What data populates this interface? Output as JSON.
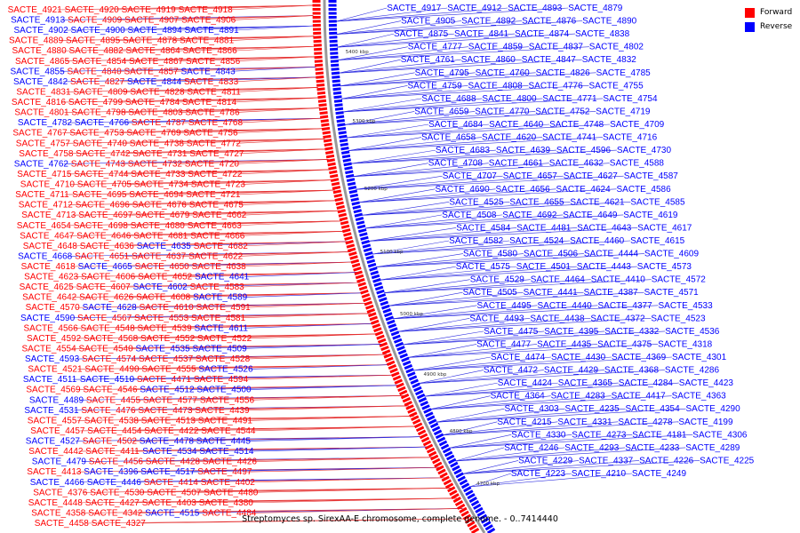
{
  "caption": "Streptomyces sp. SirexAA-E chromosome, complete genome. - 0..7414440",
  "legend": [
    {
      "label": "Forward",
      "color": "#ff0000"
    },
    {
      "label": "Reverse",
      "color": "#0000ff"
    }
  ],
  "colors": {
    "forward": "#ff0000",
    "reverse": "#0000ff",
    "forward_line": "#e53030",
    "reverse_line": "#2a2ae0"
  },
  "ticks": [
    "5400 kbp",
    "5300 kbp",
    "5200 kbp",
    "5100 kbp",
    "5000 kbp",
    "4900 kbp",
    "4800 kbp",
    "4700 kbp"
  ],
  "left_labels": [
    [
      "SACTE_4921",
      "f"
    ],
    [
      "SACTE_4920",
      "f"
    ],
    [
      "SACTE_4919",
      "f"
    ],
    [
      "SACTE_4918",
      "f"
    ],
    [
      "SACTE_4913",
      "r"
    ],
    [
      "SACTE_4909",
      "f"
    ],
    [
      "SACTE_4907",
      "f"
    ],
    [
      "SACTE_4906",
      "f"
    ],
    [
      "SACTE_4902",
      "r"
    ],
    [
      "SACTE_4900",
      "r"
    ],
    [
      "SACTE_4894",
      "r"
    ],
    [
      "SACTE_4891",
      "r"
    ],
    [
      "SACTE_4889",
      "f"
    ],
    [
      "SACTE_4895",
      "f"
    ],
    [
      "SACTE_4878",
      "f"
    ],
    [
      "SACTE_4881",
      "f"
    ],
    [
      "SACTE_4880",
      "f"
    ],
    [
      "SACTE_4882",
      "f"
    ],
    [
      "SACTE_4864",
      "f"
    ],
    [
      "SACTE_4866",
      "f"
    ],
    [
      "SACTE_4865",
      "f"
    ],
    [
      "SACTE_4854",
      "f"
    ],
    [
      "SACTE_4867",
      "f"
    ],
    [
      "SACTE_4856",
      "f"
    ],
    [
      "SACTE_4855",
      "r"
    ],
    [
      "SACTE_4840",
      "f"
    ],
    [
      "SACTE_4857",
      "f"
    ],
    [
      "SACTE_4843",
      "r"
    ],
    [
      "SACTE_4842",
      "r"
    ],
    [
      "SACTE_4827",
      "f"
    ],
    [
      "SACTE_4844",
      "r"
    ],
    [
      "SACTE_4833",
      "f"
    ],
    [
      "SACTE_4831",
      "f"
    ],
    [
      "SACTE_4809",
      "f"
    ],
    [
      "SACTE_4828",
      "f"
    ],
    [
      "SACTE_4811",
      "f"
    ],
    [
      "SACTE_4816",
      "f"
    ],
    [
      "SACTE_4799",
      "f"
    ],
    [
      "SACTE_4784",
      "f"
    ],
    [
      "SACTE_4814",
      "f"
    ],
    [
      "SACTE_4801",
      "f"
    ],
    [
      "SACTE_4798",
      "f"
    ],
    [
      "SACTE_4803",
      "f"
    ],
    [
      "SACTE_4786",
      "f"
    ],
    [
      "SACTE_4782",
      "r"
    ],
    [
      "SACTE_4766",
      "r"
    ],
    [
      "SACTE_4787",
      "f"
    ],
    [
      "SACTE_4768",
      "f"
    ],
    [
      "SACTE_4767",
      "f"
    ],
    [
      "SACTE_4753",
      "f"
    ],
    [
      "SACTE_4769",
      "f"
    ],
    [
      "SACTE_4756",
      "f"
    ],
    [
      "SACTE_4757",
      "f"
    ],
    [
      "SACTE_4740",
      "f"
    ],
    [
      "SACTE_4738",
      "f"
    ],
    [
      "SACTE_4772",
      "f"
    ],
    [
      "SACTE_4758",
      "f"
    ],
    [
      "SACTE_4742",
      "f"
    ],
    [
      "SACTE_4731",
      "f"
    ],
    [
      "SACTE_4727",
      "f"
    ],
    [
      "SACTE_4762",
      "r"
    ],
    [
      "SACTE_4743",
      "f"
    ],
    [
      "SACTE_4732",
      "f"
    ],
    [
      "SACTE_4720",
      "f"
    ],
    [
      "SACTE_4715",
      "f"
    ],
    [
      "SACTE_4744",
      "f"
    ],
    [
      "SACTE_4733",
      "f"
    ],
    [
      "SACTE_4722",
      "f"
    ],
    [
      "SACTE_4710",
      "f"
    ],
    [
      "SACTE_4705",
      "f"
    ],
    [
      "SACTE_4734",
      "f"
    ],
    [
      "SACTE_4723",
      "f"
    ],
    [
      "SACTE_4711",
      "f"
    ],
    [
      "SACTE_4695",
      "f"
    ],
    [
      "SACTE_4694",
      "f"
    ],
    [
      "SACTE_4721",
      "f"
    ],
    [
      "SACTE_4712",
      "f"
    ],
    [
      "SACTE_4696",
      "f"
    ],
    [
      "SACTE_4676",
      "f"
    ],
    [
      "SACTE_4675",
      "f"
    ],
    [
      "SACTE_4713",
      "f"
    ],
    [
      "SACTE_4697",
      "f"
    ],
    [
      "SACTE_4679",
      "f"
    ],
    [
      "SACTE_4662",
      "f"
    ],
    [
      "SACTE_4654",
      "f"
    ],
    [
      "SACTE_4698",
      "f"
    ],
    [
      "SACTE_4680",
      "f"
    ],
    [
      "SACTE_4663",
      "f"
    ],
    [
      "SACTE_4647",
      "f"
    ],
    [
      "SACTE_4646",
      "f"
    ],
    [
      "SACTE_4681",
      "f"
    ],
    [
      "SACTE_4666",
      "f"
    ],
    [
      "SACTE_4648",
      "f"
    ],
    [
      "SACTE_4636",
      "f"
    ],
    [
      "SACTE_4635",
      "r"
    ],
    [
      "SACTE_4682",
      "f"
    ],
    [
      "SACTE_4668",
      "r"
    ],
    [
      "SACTE_4651",
      "f"
    ],
    [
      "SACTE_4637",
      "f"
    ],
    [
      "SACTE_4622",
      "f"
    ],
    [
      "SACTE_4618",
      "f"
    ],
    [
      "SACTE_4665",
      "r"
    ],
    [
      "SACTE_4650",
      "f"
    ],
    [
      "SACTE_4638",
      "f"
    ],
    [
      "SACTE_4623",
      "f"
    ],
    [
      "SACTE_4606",
      "f"
    ],
    [
      "SACTE_4652",
      "f"
    ],
    [
      "SACTE_4641",
      "r"
    ],
    [
      "SACTE_4625",
      "f"
    ],
    [
      "SACTE_4607",
      "f"
    ],
    [
      "SACTE_4602",
      "r"
    ],
    [
      "SACTE_4583",
      "f"
    ],
    [
      "SACTE_4642",
      "f"
    ],
    [
      "SACTE_4626",
      "f"
    ],
    [
      "SACTE_4608",
      "f"
    ],
    [
      "SACTE_4589",
      "r"
    ],
    [
      "SACTE_4570",
      "f"
    ],
    [
      "SACTE_4628",
      "r"
    ],
    [
      "SACTE_4610",
      "f"
    ],
    [
      "SACTE_4591",
      "f"
    ],
    [
      "SACTE_4590",
      "r"
    ],
    [
      "SACTE_4567",
      "f"
    ],
    [
      "SACTE_4553",
      "f"
    ],
    [
      "SACTE_4581",
      "f"
    ],
    [
      "SACTE_4566",
      "f"
    ],
    [
      "SACTE_4548",
      "f"
    ],
    [
      "SACTE_4539",
      "f"
    ],
    [
      "SACTE_4611",
      "r"
    ],
    [
      "SACTE_4592",
      "f"
    ],
    [
      "SACTE_4568",
      "f"
    ],
    [
      "SACTE_4552",
      "f"
    ],
    [
      "SACTE_4522",
      "f"
    ],
    [
      "SACTE_4554",
      "f"
    ],
    [
      "SACTE_4540",
      "f"
    ],
    [
      "SACTE_4535",
      "r"
    ],
    [
      "SACTE_4509",
      "r"
    ],
    [
      "SACTE_4593",
      "r"
    ],
    [
      "SACTE_4574",
      "f"
    ],
    [
      "SACTE_4537",
      "f"
    ],
    [
      "SACTE_4528",
      "f"
    ],
    [
      "SACTE_4521",
      "f"
    ],
    [
      "SACTE_4490",
      "f"
    ],
    [
      "SACTE_4555",
      "f"
    ],
    [
      "SACTE_4526",
      "r"
    ],
    [
      "SACTE_4511",
      "r"
    ],
    [
      "SACTE_4510",
      "r"
    ],
    [
      "SACTE_4471",
      "f"
    ],
    [
      "SACTE_4594",
      "f"
    ],
    [
      "SACTE_4569",
      "f"
    ],
    [
      "SACTE_4546",
      "f"
    ],
    [
      "SACTE_4512",
      "r"
    ],
    [
      "SACTE_4500",
      "r"
    ],
    [
      "SACTE_4489",
      "r"
    ],
    [
      "SACTE_4455",
      "f"
    ],
    [
      "SACTE_4577",
      "f"
    ],
    [
      "SACTE_4556",
      "f"
    ],
    [
      "SACTE_4531",
      "r"
    ],
    [
      "SACTE_4476",
      "f"
    ],
    [
      "SACTE_4473",
      "f"
    ],
    [
      "SACTE_4439",
      "f"
    ],
    [
      "SACTE_4557",
      "f"
    ],
    [
      "SACTE_4538",
      "f"
    ],
    [
      "SACTE_4513",
      "f"
    ],
    [
      "SACTE_4491",
      "f"
    ],
    [
      "SACTE_4457",
      "f"
    ],
    [
      "SACTE_4454",
      "f"
    ],
    [
      "SACTE_4422",
      "f"
    ],
    [
      "SACTE_4544",
      "f"
    ],
    [
      "SACTE_4527",
      "r"
    ],
    [
      "SACTE_4502",
      "f"
    ],
    [
      "SACTE_4478",
      "r"
    ],
    [
      "SACTE_4445",
      "r"
    ],
    [
      "SACTE_4442",
      "f"
    ],
    [
      "SACTE_4411",
      "f"
    ],
    [
      "SACTE_4534",
      "r"
    ],
    [
      "SACTE_4514",
      "r"
    ],
    [
      "SACTE_4479",
      "r"
    ],
    [
      "SACTE_4456",
      "f"
    ],
    [
      "SACTE_4428",
      "f"
    ],
    [
      "SACTE_4426",
      "f"
    ],
    [
      "SACTE_4413",
      "f"
    ],
    [
      "SACTE_4396",
      "r"
    ],
    [
      "SACTE_4517",
      "r"
    ],
    [
      "SACTE_4497",
      "f"
    ],
    [
      "SACTE_4466",
      "r"
    ],
    [
      "SACTE_4446",
      "r"
    ],
    [
      "SACTE_4414",
      "f"
    ],
    [
      "SACTE_4402",
      "f"
    ],
    [
      "SACTE_4376",
      "f"
    ],
    [
      "SACTE_4530",
      "f"
    ],
    [
      "SACTE_4507",
      "f"
    ],
    [
      "SACTE_4480",
      "f"
    ],
    [
      "SACTE_4448",
      "f"
    ],
    [
      "SACTE_4427",
      "f"
    ],
    [
      "SACTE_4403",
      "f"
    ],
    [
      "SACTE_4380",
      "f"
    ],
    [
      "SACTE_4358",
      "f"
    ],
    [
      "SACTE_4342",
      "f"
    ],
    [
      "SACTE_4515",
      "r"
    ],
    [
      "SACTE_4484",
      "f"
    ],
    [
      "SACTE_4458",
      "f"
    ],
    [
      "SACTE_4327",
      "f"
    ]
  ],
  "right_labels": [
    "SACTE_4917",
    "SACTE_4912",
    "SACTE_4893",
    "SACTE_4879",
    "SACTE_4905",
    "SACTE_4892",
    "SACTE_4876",
    "SACTE_4890",
    "SACTE_4875",
    "SACTE_4841",
    "SACTE_4874",
    "SACTE_4838",
    "SACTE_4777",
    "SACTE_4859",
    "SACTE_4837",
    "SACTE_4802",
    "SACTE_4761",
    "SACTE_4860",
    "SACTE_4847",
    "SACTE_4832",
    "SACTE_4795",
    "SACTE_4760",
    "SACTE_4826",
    "SACTE_4785",
    "SACTE_4759",
    "SACTE_4808",
    "SACTE_4776",
    "SACTE_4755",
    "SACTE_4688",
    "SACTE_4800",
    "SACTE_4771",
    "SACTE_4754",
    "SACTE_4659",
    "SACTE_4770",
    "SACTE_4752",
    "SACTE_4719",
    "SACTE_4684",
    "SACTE_4640",
    "SACTE_4748",
    "SACTE_4709",
    "SACTE_4658",
    "SACTE_4620",
    "SACTE_4741",
    "SACTE_4716",
    "SACTE_4683",
    "SACTE_4639",
    "SACTE_4596",
    "SACTE_4730",
    "SACTE_4708",
    "SACTE_4661",
    "SACTE_4632",
    "SACTE_4588",
    "SACTE_4707",
    "SACTE_4657",
    "SACTE_4627",
    "SACTE_4587",
    "SACTE_4690",
    "SACTE_4656",
    "SACTE_4624",
    "SACTE_4586",
    "SACTE_4525",
    "SACTE_4655",
    "SACTE_4621",
    "SACTE_4585",
    "SACTE_4508",
    "SACTE_4692",
    "SACTE_4649",
    "SACTE_4619",
    "SACTE_4584",
    "SACTE_4481",
    "SACTE_4643",
    "SACTE_4617",
    "SACTE_4582",
    "SACTE_4524",
    "SACTE_4460",
    "SACTE_4615",
    "SACTE_4580",
    "SACTE_4506",
    "SACTE_4444",
    "SACTE_4609",
    "SACTE_4575",
    "SACTE_4501",
    "SACTE_4443",
    "SACTE_4573",
    "SACTE_4529",
    "SACTE_4464",
    "SACTE_4410",
    "SACTE_4572",
    "SACTE_4505",
    "SACTE_4441",
    "SACTE_4387",
    "SACTE_4571",
    "SACTE_4495",
    "SACTE_4440",
    "SACTE_4377",
    "SACTE_4533",
    "SACTE_4493",
    "SACTE_4438",
    "SACTE_4372",
    "SACTE_4523",
    "SACTE_4475",
    "SACTE_4395",
    "SACTE_4332",
    "SACTE_4536",
    "SACTE_4477",
    "SACTE_4435",
    "SACTE_4375",
    "SACTE_4318",
    "SACTE_4474",
    "SACTE_4430",
    "SACTE_4369",
    "SACTE_4301",
    "SACTE_4472",
    "SACTE_4429",
    "SACTE_4368",
    "SACTE_4286",
    "SACTE_4424",
    "SACTE_4365",
    "SACTE_4284",
    "SACTE_4423",
    "SACTE_4364",
    "SACTE_4283",
    "SACTE_4417",
    "SACTE_4363",
    "SACTE_4303",
    "SACTE_4235",
    "SACTE_4354",
    "SACTE_4290",
    "SACTE_4215",
    "SACTE_4331",
    "SACTE_4278",
    "SACTE_4199",
    "SACTE_4330",
    "SACTE_4273",
    "SACTE_4181",
    "SACTE_4306",
    "SACTE_4246",
    "SACTE_4293",
    "SACTE_4233",
    "SACTE_4289",
    "SACTE_4229",
    "SACTE_4337",
    "SACTE_4226",
    "SACTE_4225",
    "SACTE_4223",
    "SACTE_4210",
    "SACTE_4249"
  ]
}
